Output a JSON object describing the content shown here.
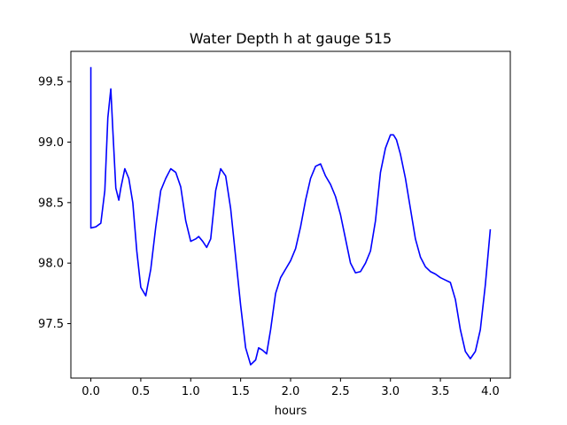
{
  "chart_data": {
    "type": "line",
    "title": "Water Depth h at gauge 515",
    "xlabel": "hours",
    "ylabel": "",
    "xlim": [
      -0.2,
      4.2
    ],
    "ylim": [
      97.05,
      99.75
    ],
    "grid": false,
    "xticks": [
      0.0,
      0.5,
      1.0,
      1.5,
      2.0,
      2.5,
      3.0,
      3.5,
      4.0
    ],
    "xtick_labels": [
      "0.0",
      "0.5",
      "1.0",
      "1.5",
      "2.0",
      "2.5",
      "3.0",
      "3.5",
      "4.0"
    ],
    "yticks": [
      97.5,
      98.0,
      98.5,
      99.0,
      99.5
    ],
    "ytick_labels": [
      "97.5",
      "98.0",
      "98.5",
      "99.0",
      "99.5"
    ],
    "series": [
      {
        "color": "#0000ff",
        "x": [
          0.0,
          0.0,
          0.0,
          0.05,
          0.1,
          0.14,
          0.17,
          0.2,
          0.22,
          0.25,
          0.28,
          0.3,
          0.34,
          0.38,
          0.42,
          0.46,
          0.5,
          0.55,
          0.6,
          0.65,
          0.7,
          0.75,
          0.8,
          0.85,
          0.9,
          0.95,
          1.0,
          1.05,
          1.08,
          1.12,
          1.16,
          1.2,
          1.25,
          1.3,
          1.35,
          1.4,
          1.45,
          1.5,
          1.55,
          1.6,
          1.65,
          1.68,
          1.72,
          1.76,
          1.8,
          1.85,
          1.9,
          1.95,
          2.0,
          2.05,
          2.1,
          2.15,
          2.2,
          2.25,
          2.3,
          2.35,
          2.4,
          2.45,
          2.5,
          2.55,
          2.6,
          2.65,
          2.7,
          2.75,
          2.8,
          2.85,
          2.9,
          2.95,
          3.0,
          3.03,
          3.06,
          3.1,
          3.15,
          3.2,
          3.25,
          3.3,
          3.35,
          3.4,
          3.45,
          3.5,
          3.55,
          3.6,
          3.65,
          3.7,
          3.75,
          3.8,
          3.85,
          3.9,
          3.95,
          4.0
        ],
        "y": [
          99.62,
          98.8,
          98.29,
          98.3,
          98.33,
          98.6,
          99.2,
          99.44,
          99.1,
          98.62,
          98.52,
          98.62,
          98.78,
          98.7,
          98.5,
          98.1,
          97.8,
          97.73,
          97.95,
          98.3,
          98.6,
          98.7,
          98.78,
          98.75,
          98.63,
          98.35,
          98.18,
          98.2,
          98.22,
          98.18,
          98.13,
          98.2,
          98.6,
          98.78,
          98.72,
          98.45,
          98.05,
          97.65,
          97.3,
          97.16,
          97.2,
          97.3,
          97.28,
          97.25,
          97.45,
          97.75,
          97.88,
          97.95,
          98.02,
          98.12,
          98.3,
          98.52,
          98.7,
          98.8,
          98.82,
          98.72,
          98.65,
          98.55,
          98.4,
          98.2,
          98.0,
          97.92,
          97.93,
          98.0,
          98.1,
          98.35,
          98.75,
          98.95,
          99.06,
          99.06,
          99.02,
          98.9,
          98.7,
          98.45,
          98.2,
          98.05,
          97.97,
          97.93,
          97.91,
          97.88,
          97.86,
          97.84,
          97.7,
          97.45,
          97.27,
          97.21,
          97.27,
          97.45,
          97.82,
          98.28
        ]
      }
    ]
  }
}
